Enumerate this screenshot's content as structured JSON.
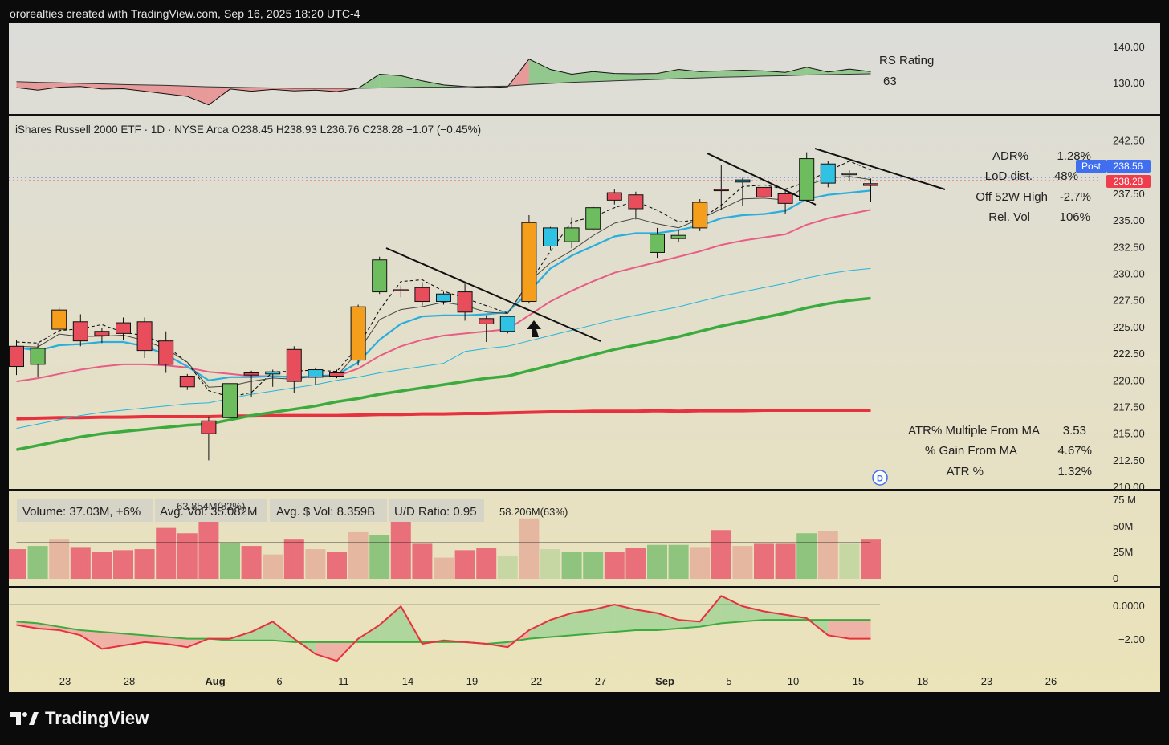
{
  "header": {
    "attribution": "ororealties created with TradingView.com, Sep 16, 2025 18:20 UTC-4"
  },
  "brand": {
    "name": "TradingView"
  },
  "rs_panel": {
    "label": "RS Rating",
    "value": "63",
    "axis_ticks": [
      "140.00",
      "130.00"
    ]
  },
  "price_panel": {
    "legend": "iShares Russell 2000 ETF · 1D · NYSE Arca  O238.45  H238.93  L236.76  C238.28  −1.07 (−0.45%)",
    "axis_ticks": [
      "242.50",
      "240.00",
      "237.50",
      "235.00",
      "232.50",
      "230.00",
      "227.50",
      "225.00",
      "222.50",
      "220.00",
      "217.50",
      "215.00",
      "212.50",
      "210.00"
    ],
    "post_badge": {
      "label": "Post",
      "value": "238.56"
    },
    "last_price_badge": "238.28",
    "dividend_marker": "D",
    "stats_top": [
      {
        "label": "ADR%",
        "value": "1.28%"
      },
      {
        "label": "LoD dist.",
        "value": "48%"
      },
      {
        "label": "Off 52W High",
        "value": "-2.7%"
      },
      {
        "label": "Rel. Vol",
        "value": "106%"
      }
    ],
    "stats_bottom": [
      {
        "label": "ATR% Multiple From MA",
        "value": "3.53"
      },
      {
        "label": "% Gain From MA",
        "value": "4.67%"
      },
      {
        "label": "ATR %",
        "value": "1.32%"
      }
    ]
  },
  "volume_panel": {
    "boxes": [
      "Volume: 37.03M, +6%",
      "Avg. Vol: 35.082M",
      "Avg. $ Vol: 8.359B",
      "U/D Ratio: 0.95"
    ],
    "annotations": [
      "63.854M(82%)",
      "58.206M(63%)"
    ],
    "axis_ticks": [
      "75 M",
      "50M",
      "25M",
      "0"
    ]
  },
  "osc_panel": {
    "axis_ticks": [
      "0.0000",
      "−2.00"
    ]
  },
  "xaxis": {
    "labels": [
      "23",
      "28",
      "Aug",
      "6",
      "11",
      "14",
      "19",
      "22",
      "27",
      "Sep",
      "5",
      "10",
      "15",
      "18",
      "23",
      "26"
    ]
  },
  "colors": {
    "up": "#6dbd5e",
    "down": "#e84d5b",
    "pocket": "#f59e1b",
    "inside": "#2fc2e2",
    "ema10": "#29aede",
    "ema21": "#e85d85",
    "sma50": "#3bab3e",
    "sma200": "#e8313e"
  },
  "chart_data": {
    "type": "candlestick",
    "price_range": [
      210,
      243
    ],
    "candles": [
      {
        "o": 221.3,
        "h": 223.8,
        "l": 220.5,
        "c": 223.2,
        "k": "down"
      },
      {
        "o": 221.5,
        "h": 223.5,
        "l": 220.3,
        "c": 223.0,
        "k": "up"
      },
      {
        "o": 224.8,
        "h": 226.8,
        "l": 224.5,
        "c": 226.6,
        "k": "pocket"
      },
      {
        "o": 225.5,
        "h": 226.2,
        "l": 223.2,
        "c": 223.7,
        "k": "down"
      },
      {
        "o": 224.6,
        "h": 224.9,
        "l": 223.5,
        "c": 224.2,
        "k": "down"
      },
      {
        "o": 225.4,
        "h": 225.9,
        "l": 223.8,
        "c": 224.4,
        "k": "down"
      },
      {
        "o": 225.5,
        "h": 225.9,
        "l": 222.1,
        "c": 222.8,
        "k": "down"
      },
      {
        "o": 223.7,
        "h": 224.6,
        "l": 220.7,
        "c": 221.5,
        "k": "down"
      },
      {
        "o": 220.4,
        "h": 220.6,
        "l": 219.1,
        "c": 219.4,
        "k": "down"
      },
      {
        "o": 216.2,
        "h": 216.6,
        "l": 212.5,
        "c": 215.0,
        "k": "down"
      },
      {
        "o": 216.5,
        "h": 219.8,
        "l": 216.3,
        "c": 219.7,
        "k": "up"
      },
      {
        "o": 220.5,
        "h": 220.9,
        "l": 218.4,
        "c": 220.7,
        "k": "down"
      },
      {
        "o": 220.6,
        "h": 221.0,
        "l": 219.4,
        "c": 220.8,
        "k": "inside"
      },
      {
        "o": 222.9,
        "h": 223.2,
        "l": 218.8,
        "c": 219.9,
        "k": "down"
      },
      {
        "o": 220.3,
        "h": 221.2,
        "l": 219.6,
        "c": 221.0,
        "k": "inside"
      },
      {
        "o": 220.7,
        "h": 221.0,
        "l": 220.2,
        "c": 220.4,
        "k": "down"
      },
      {
        "o": 221.9,
        "h": 227.1,
        "l": 221.4,
        "c": 226.9,
        "k": "pocket"
      },
      {
        "o": 228.3,
        "h": 231.6,
        "l": 228.1,
        "c": 231.3,
        "k": "up"
      },
      {
        "o": 228.5,
        "h": 228.9,
        "l": 227.8,
        "c": 228.4,
        "k": "down"
      },
      {
        "o": 228.7,
        "h": 229.2,
        "l": 227.0,
        "c": 227.4,
        "k": "down"
      },
      {
        "o": 227.4,
        "h": 228.3,
        "l": 227.1,
        "c": 228.1,
        "k": "inside"
      },
      {
        "o": 228.3,
        "h": 229.1,
        "l": 225.6,
        "c": 226.4,
        "k": "down"
      },
      {
        "o": 225.8,
        "h": 226.1,
        "l": 223.6,
        "c": 225.3,
        "k": "down"
      },
      {
        "o": 224.6,
        "h": 226.0,
        "l": 224.4,
        "c": 226.0,
        "k": "inside"
      },
      {
        "o": 227.4,
        "h": 235.5,
        "l": 227.2,
        "c": 234.8,
        "k": "pocket"
      },
      {
        "o": 232.6,
        "h": 234.4,
        "l": 232.2,
        "c": 234.3,
        "k": "inside"
      },
      {
        "o": 233.0,
        "h": 235.3,
        "l": 232.4,
        "c": 234.3,
        "k": "up"
      },
      {
        "o": 234.2,
        "h": 236.3,
        "l": 234.0,
        "c": 236.2,
        "k": "up"
      },
      {
        "o": 237.6,
        "h": 237.9,
        "l": 236.5,
        "c": 236.9,
        "k": "down"
      },
      {
        "o": 237.4,
        "h": 237.7,
        "l": 235.1,
        "c": 236.1,
        "k": "down"
      },
      {
        "o": 232.0,
        "h": 234.3,
        "l": 231.5,
        "c": 233.7,
        "k": "up"
      },
      {
        "o": 233.3,
        "h": 234.1,
        "l": 233.0,
        "c": 233.6,
        "k": "up"
      },
      {
        "o": 234.3,
        "h": 237.0,
        "l": 234.0,
        "c": 236.7,
        "k": "pocket"
      },
      {
        "o": 237.9,
        "h": 240.2,
        "l": 236.0,
        "c": 237.8,
        "k": "down"
      },
      {
        "o": 238.6,
        "h": 239.0,
        "l": 236.4,
        "c": 238.8,
        "k": "inside"
      },
      {
        "o": 238.1,
        "h": 238.4,
        "l": 236.7,
        "c": 237.2,
        "k": "down"
      },
      {
        "o": 237.5,
        "h": 237.8,
        "l": 235.6,
        "c": 236.6,
        "k": "down"
      },
      {
        "o": 236.9,
        "h": 241.4,
        "l": 236.8,
        "c": 240.8,
        "k": "up"
      },
      {
        "o": 238.5,
        "h": 240.6,
        "l": 238.1,
        "c": 240.3,
        "k": "inside"
      },
      {
        "o": 239.3,
        "h": 239.7,
        "l": 238.7,
        "c": 239.4,
        "k": "plain"
      },
      {
        "o": 238.45,
        "h": 238.93,
        "l": 236.76,
        "c": 238.28,
        "k": "down"
      }
    ],
    "ema10": [
      223.1,
      222.8,
      223.3,
      223.4,
      223.6,
      223.6,
      223.2,
      222.4,
      221.3,
      220.0,
      220.3,
      220.3,
      220.4,
      220.3,
      220.4,
      220.5,
      221.7,
      223.8,
      225.3,
      226.0,
      226.1,
      226.1,
      226.2,
      226.4,
      228.3,
      230.5,
      231.7,
      232.6,
      233.5,
      233.8,
      233.8,
      234.1,
      234.5,
      235.2,
      235.5,
      235.6,
      235.9,
      237.0,
      237.4,
      237.6,
      237.8
    ],
    "ema21": [
      219.9,
      220.2,
      220.6,
      221.0,
      221.3,
      221.5,
      221.5,
      221.4,
      221.2,
      220.8,
      220.6,
      220.4,
      220.4,
      220.3,
      220.3,
      220.4,
      221.1,
      222.3,
      223.2,
      223.8,
      224.2,
      224.4,
      224.6,
      224.8,
      226.1,
      227.4,
      228.4,
      229.3,
      230.1,
      230.6,
      231.1,
      231.6,
      232.1,
      232.7,
      233.1,
      233.4,
      233.7,
      234.6,
      235.2,
      235.6,
      236.0
    ],
    "sma50": [
      213.5,
      213.9,
      214.3,
      214.7,
      215.0,
      215.2,
      215.4,
      215.6,
      215.8,
      215.9,
      216.3,
      216.7,
      217.0,
      217.3,
      217.6,
      218.0,
      218.3,
      218.7,
      219.0,
      219.3,
      219.6,
      219.9,
      220.2,
      220.4,
      220.9,
      221.4,
      221.9,
      222.4,
      222.9,
      223.3,
      223.7,
      224.1,
      224.6,
      225.1,
      225.5,
      225.9,
      226.3,
      226.8,
      227.2,
      227.5,
      227.7
    ],
    "sma200": [
      216.4,
      216.45,
      216.5,
      216.5,
      216.55,
      216.55,
      216.6,
      216.6,
      216.6,
      216.6,
      216.65,
      216.65,
      216.7,
      216.7,
      216.7,
      216.7,
      216.75,
      216.8,
      216.8,
      216.85,
      216.85,
      216.9,
      216.9,
      216.95,
      217.0,
      217.05,
      217.05,
      217.1,
      217.1,
      217.1,
      217.15,
      217.1,
      217.15,
      217.15,
      217.15,
      217.2,
      217.2,
      217.2,
      217.2,
      217.2,
      217.2
    ],
    "volume_millions": [
      28,
      31,
      37,
      30,
      25,
      27,
      28,
      48,
      43,
      62,
      34,
      31,
      23,
      37,
      28,
      25,
      44,
      41,
      55,
      33,
      20,
      27,
      29,
      22,
      57,
      28,
      25,
      25,
      25,
      29,
      32,
      32,
      30,
      46,
      31,
      33,
      33,
      43,
      45,
      33,
      37
    ]
  }
}
